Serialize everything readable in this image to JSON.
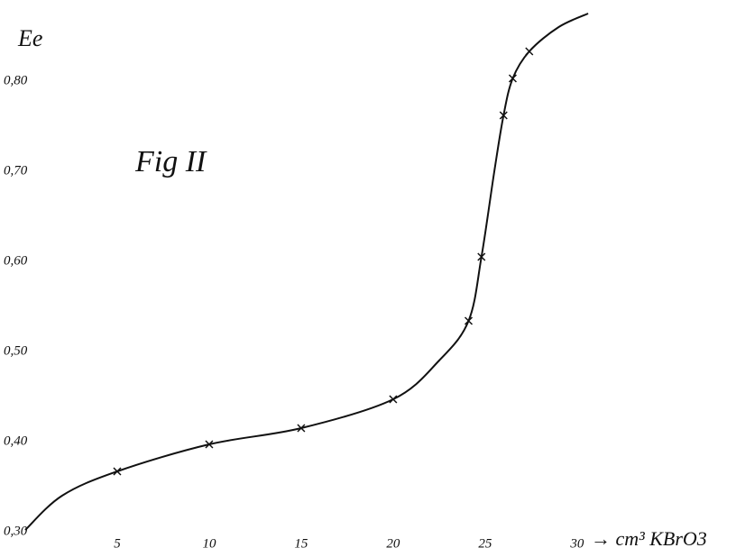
{
  "chart_data": {
    "type": "line",
    "title": "Fig II",
    "y_label": "Ee",
    "x_label": "→ cm³ KBrO3",
    "xlim": [
      0,
      38
    ],
    "ylim": [
      0.3,
      0.88
    ],
    "xticks": [
      5,
      10,
      15,
      20,
      25,
      30
    ],
    "yticks": [
      {
        "value": 0.3,
        "label": "0,30"
      },
      {
        "value": 0.4,
        "label": "0,40"
      },
      {
        "value": 0.5,
        "label": "0,50"
      },
      {
        "value": 0.6,
        "label": "0,60"
      },
      {
        "value": 0.7,
        "label": "0,70"
      },
      {
        "value": 0.8,
        "label": "0,80"
      }
    ],
    "grid": false,
    "series": [
      {
        "color": "#111111",
        "marker": "none",
        "x": [
          0,
          2,
          5,
          10,
          15,
          20,
          22.5,
          24.1,
          24.8,
          25.5,
          26.0,
          26.5,
          27.4,
          29,
          30.6
        ],
        "values": [
          0.302,
          0.34,
          0.367,
          0.397,
          0.415,
          0.447,
          0.49,
          0.534,
          0.605,
          0.7,
          0.762,
          0.803,
          0.833,
          0.86,
          0.875
        ]
      },
      {
        "color": "#111111",
        "marker": "x",
        "x": [
          5,
          10,
          15,
          20,
          24.1,
          24.8,
          26.0,
          26.5,
          27.4
        ],
        "values": [
          0.367,
          0.397,
          0.415,
          0.447,
          0.534,
          0.605,
          0.762,
          0.803,
          0.833
        ]
      }
    ]
  }
}
